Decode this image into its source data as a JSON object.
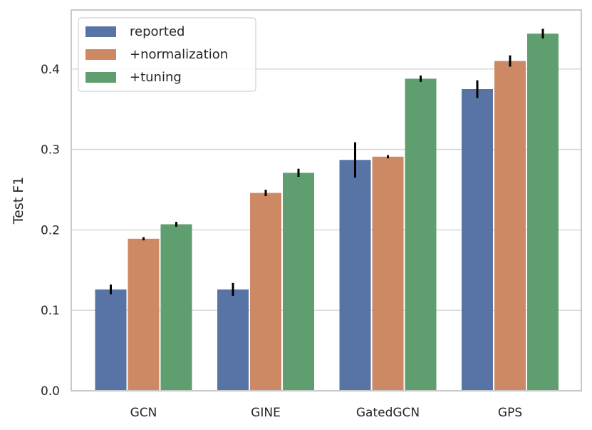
{
  "chart_data": {
    "type": "bar",
    "title": "",
    "xlabel": "",
    "ylabel": "Test F1",
    "ylim": [
      0,
      0.47
    ],
    "yticks": [
      0.0,
      0.1,
      0.2,
      0.3,
      0.4
    ],
    "ytick_labels": [
      "0.0",
      "0.1",
      "0.2",
      "0.3",
      "0.4"
    ],
    "categories": [
      "GCN",
      "GINE",
      "GatedGCN",
      "GPS"
    ],
    "grid": true,
    "legend_position": "top-left",
    "series": [
      {
        "name": "reported",
        "color": "#5874a6",
        "values": [
          0.126,
          0.126,
          0.287,
          0.375
        ],
        "errors": [
          0.006,
          0.008,
          0.022,
          0.011
        ]
      },
      {
        "name": "+normalization",
        "color": "#cc8963",
        "values": [
          0.189,
          0.246,
          0.291,
          0.41
        ],
        "errors": [
          0.002,
          0.004,
          0.002,
          0.007
        ]
      },
      {
        "name": "+tuning",
        "color": "#5f9e6e",
        "values": [
          0.207,
          0.271,
          0.388,
          0.444
        ],
        "errors": [
          0.003,
          0.005,
          0.004,
          0.006
        ]
      }
    ]
  }
}
